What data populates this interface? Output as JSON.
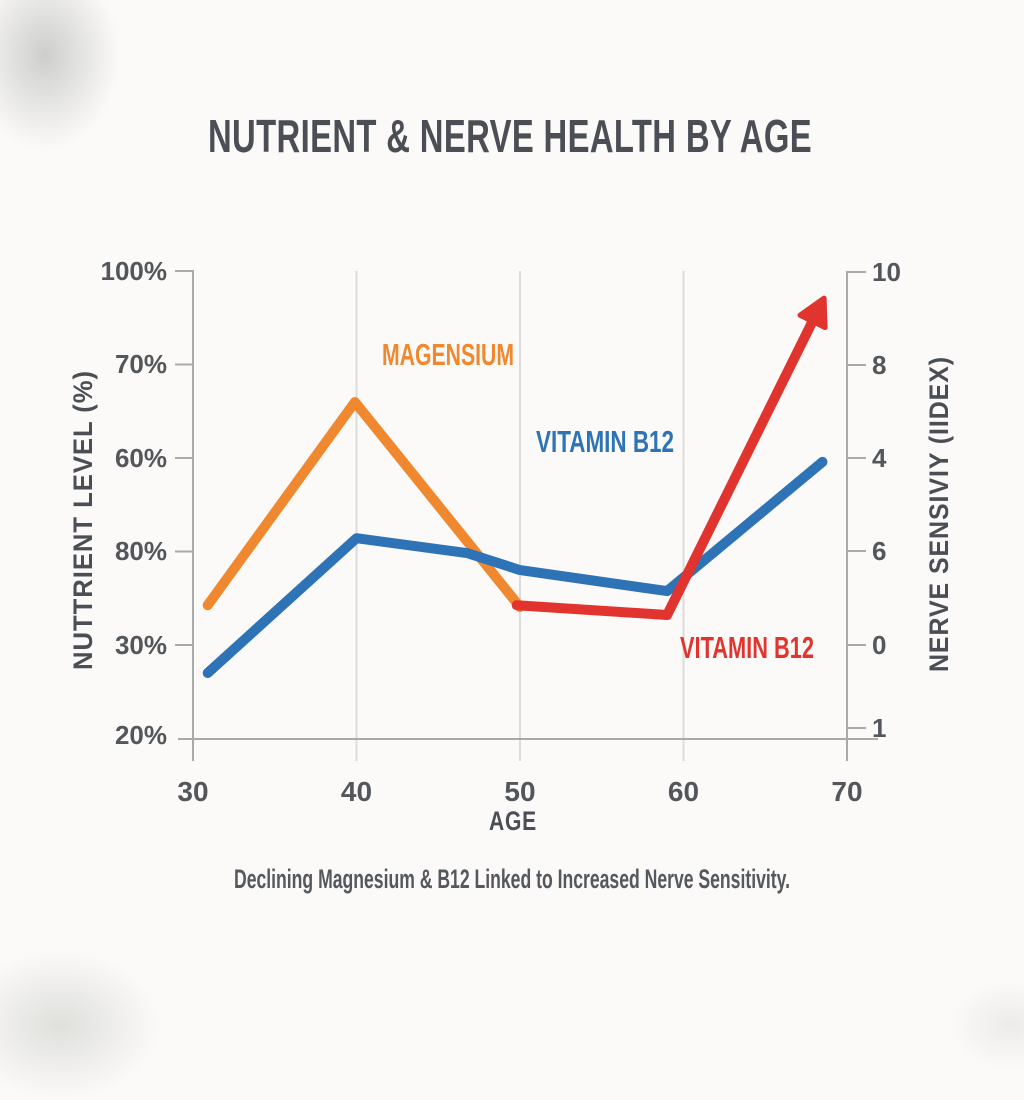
{
  "colors": {
    "background": "#fbfaf8",
    "title_text": "#4b4f55",
    "tick_text": "#53565b",
    "axis_line": "#a9abab",
    "gridline": "#dcdcda",
    "magnesium_orange": "#f0882f",
    "b12_blue": "#2e73b5",
    "nerve_red": "#e2342e"
  },
  "chart_data": {
    "type": "line",
    "title": "NUTRIENT & NERVE HEALTH BY AGE",
    "caption": "Declining Magnesium & B12 Linked to Increased Nerve Sensitivity.",
    "xlabel": "AGE",
    "ylabel_left": "NUTTRIENT LEVEL (%)",
    "ylabel_right": "NERVE SENSIVIY (IIDEX)",
    "xlim": [
      30,
      70
    ],
    "ylim": [
      0,
      100
    ],
    "x_ticks": [
      "30",
      "40",
      "50",
      "60",
      "70"
    ],
    "y_ticks_left": [
      "100%",
      "70%",
      "60%",
      "80%",
      "30%",
      "20%"
    ],
    "y_ticks_right": [
      "10",
      "8",
      "4",
      "6",
      "0",
      "1"
    ],
    "grid": "vertical-only",
    "legend_position": "inline-labels",
    "y_encoding_note": "y values are normalized 0-100 plot positions; printed tick labels are non-monotonic as shown",
    "series": [
      {
        "name": "MAGENSIUM",
        "color": "#f0882f",
        "axis": "left",
        "x": [
          30.9,
          39.9,
          50.0
        ],
        "y": [
          28.6,
          72.0,
          28.2
        ]
      },
      {
        "name": "VITAMIN B12",
        "color": "#2e73b5",
        "axis": "left",
        "x": [
          30.9,
          40.0,
          46.8,
          50.0,
          59.0,
          68.5
        ],
        "y": [
          14.1,
          42.9,
          39.7,
          36.1,
          31.6,
          59.2
        ]
      },
      {
        "name": "VITAMIN B12",
        "color": "#e2342e",
        "axis": "right",
        "x": [
          49.8,
          59.0,
          68.0
        ],
        "y": [
          28.6,
          26.5,
          90.0
        ],
        "arrow_end": true
      }
    ]
  }
}
